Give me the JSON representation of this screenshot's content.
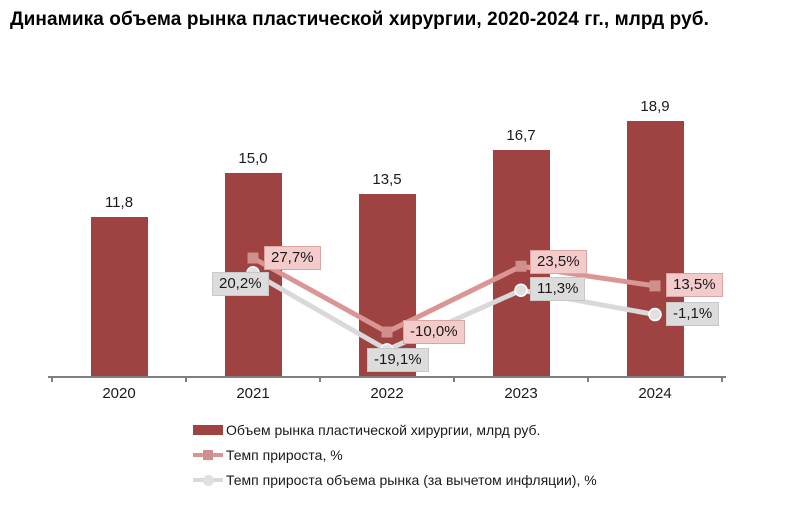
{
  "title": "Динамика объема рынка пластической хирургии, 2020-2024 гг., млрд руб.",
  "chart_data": {
    "type": "bar",
    "subtype": "combo-bar-line",
    "categories": [
      "2020",
      "2021",
      "2022",
      "2023",
      "2024"
    ],
    "series": [
      {
        "name": "Объем рынка пластической хирургии, млрд руб.",
        "type": "bar",
        "values": [
          11.8,
          15.0,
          13.5,
          16.7,
          18.9
        ],
        "labels": [
          "11,8",
          "15,0",
          "13,5",
          "16,7",
          "18,9"
        ],
        "color": "#9E4342"
      },
      {
        "name": "Темп прироста, %",
        "type": "line",
        "marker": "square",
        "values": [
          null,
          27.7,
          -10.0,
          23.5,
          13.5
        ],
        "labels": [
          null,
          "27,7%",
          "-10,0%",
          "23,5%",
          "13,5%"
        ],
        "color": "#D99694",
        "marker_color": "#D08E8C",
        "label_bg": "#F3CBCA",
        "label_border": "#DBA5A3"
      },
      {
        "name": "Темп прироста объема рынка (за вычетом инфляции), %",
        "type": "line",
        "marker": "circle",
        "values": [
          null,
          20.2,
          -19.1,
          11.3,
          -1.1
        ],
        "labels": [
          null,
          "20,2%",
          "-19,1%",
          "11,3%",
          "-1,1%"
        ],
        "color": "#D9D9D9",
        "marker_color": "#E0E0E0",
        "label_bg": "#DCDCDC",
        "label_border": "#C8C8C8"
      }
    ],
    "title": "Динамика объема рынка пластической хирургии, 2020-2024 гг., млрд руб.",
    "xlabel": "",
    "ylabel": "",
    "grid": false,
    "legend_position": "bottom",
    "axis_color": "#7F7F7F"
  }
}
